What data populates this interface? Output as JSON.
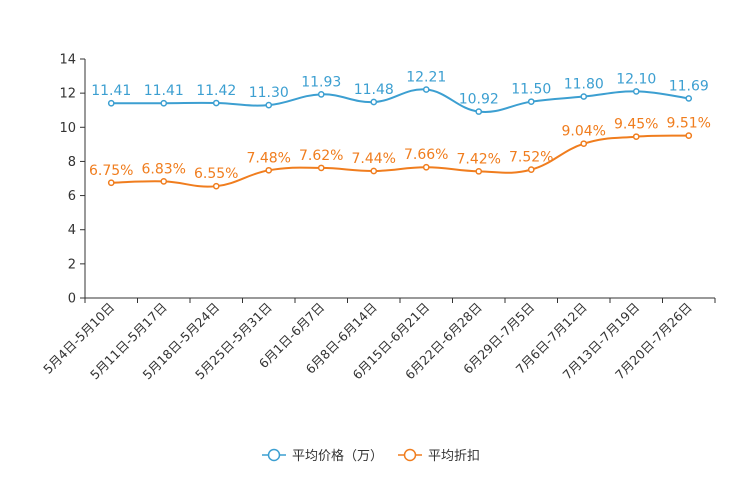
{
  "chart_data": {
    "type": "line",
    "title": "",
    "xlabel": "",
    "ylabel": "",
    "ylim": [
      0,
      14
    ],
    "yticks": [
      0,
      2,
      4,
      6,
      8,
      10,
      12,
      14
    ],
    "grid": false,
    "legend_position": "bottom-center",
    "categories": [
      "5月4日-5月10日",
      "5月11日-5月17日",
      "5月18日-5月24日",
      "5月25日-5月31日",
      "6月1日-6月7日",
      "6月8日-6月14日",
      "6月15日-6月21日",
      "6月22日-6月28日",
      "6月29日-7月5日",
      "7月6日-7月12日",
      "7月13日-7月19日",
      "7月20日-7月26日"
    ],
    "series": [
      {
        "name": "平均价格（万）",
        "color": "#3c9fd1",
        "values": [
          11.41,
          11.41,
          11.42,
          11.3,
          11.93,
          11.48,
          12.21,
          10.92,
          11.5,
          11.8,
          12.1,
          11.69
        ],
        "labels": [
          "11.41",
          "11.41",
          "11.42",
          "11.30",
          "11.93",
          "11.48",
          "12.21",
          "10.92",
          "11.50",
          "11.80",
          "12.10",
          "11.69"
        ]
      },
      {
        "name": "平均折扣",
        "color": "#f07d1e",
        "values": [
          6.75,
          6.83,
          6.55,
          7.48,
          7.62,
          7.44,
          7.66,
          7.42,
          7.52,
          9.04,
          9.45,
          9.51
        ],
        "labels": [
          "6.75%",
          "6.83%",
          "6.55%",
          "7.48%",
          "7.62%",
          "7.44%",
          "7.66%",
          "7.42%",
          "7.52%",
          "9.04%",
          "9.45%",
          "9.51%"
        ]
      }
    ]
  }
}
